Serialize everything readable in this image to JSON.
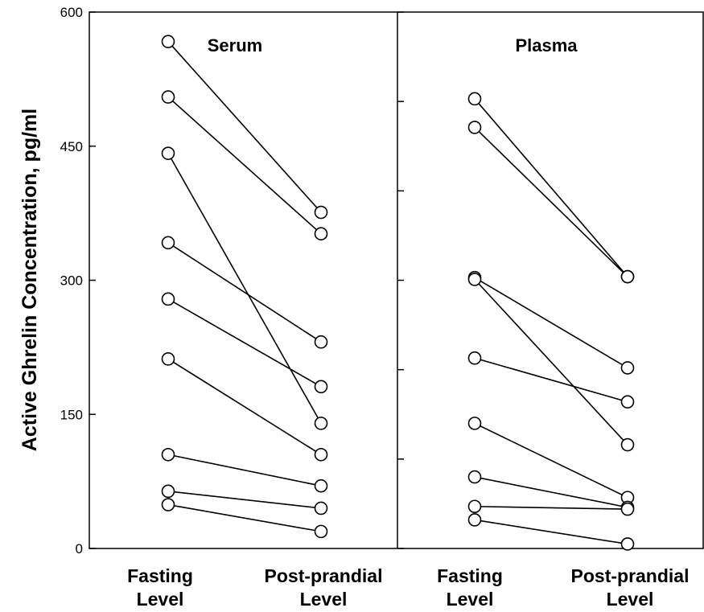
{
  "chart_data": {
    "type": "line",
    "ylabel": "Active Ghrelin Concentration, pg/ml",
    "ylim": [
      0,
      600
    ],
    "y_ticks": [
      "0",
      "150",
      "300",
      "450",
      "600"
    ],
    "categories": [
      {
        "line1": "Fasting",
        "line2": "Level"
      },
      {
        "line1": "Post-prandial",
        "line2": "Level"
      }
    ],
    "panels": [
      {
        "title": "Serum",
        "pairs": [
          [
            567,
            376
          ],
          [
            505,
            352
          ],
          [
            442,
            140
          ],
          [
            342,
            231
          ],
          [
            279,
            181
          ],
          [
            212,
            105
          ],
          [
            105,
            70
          ],
          [
            64,
            45
          ],
          [
            49,
            19
          ]
        ]
      },
      {
        "title": "Plasma",
        "pairs": [
          [
            503,
            304
          ],
          [
            471,
            304
          ],
          [
            303,
            202
          ],
          [
            301,
            116
          ],
          [
            213,
            164
          ],
          [
            140,
            57
          ],
          [
            80,
            46
          ],
          [
            47,
            44
          ],
          [
            32,
            5
          ]
        ]
      }
    ]
  }
}
